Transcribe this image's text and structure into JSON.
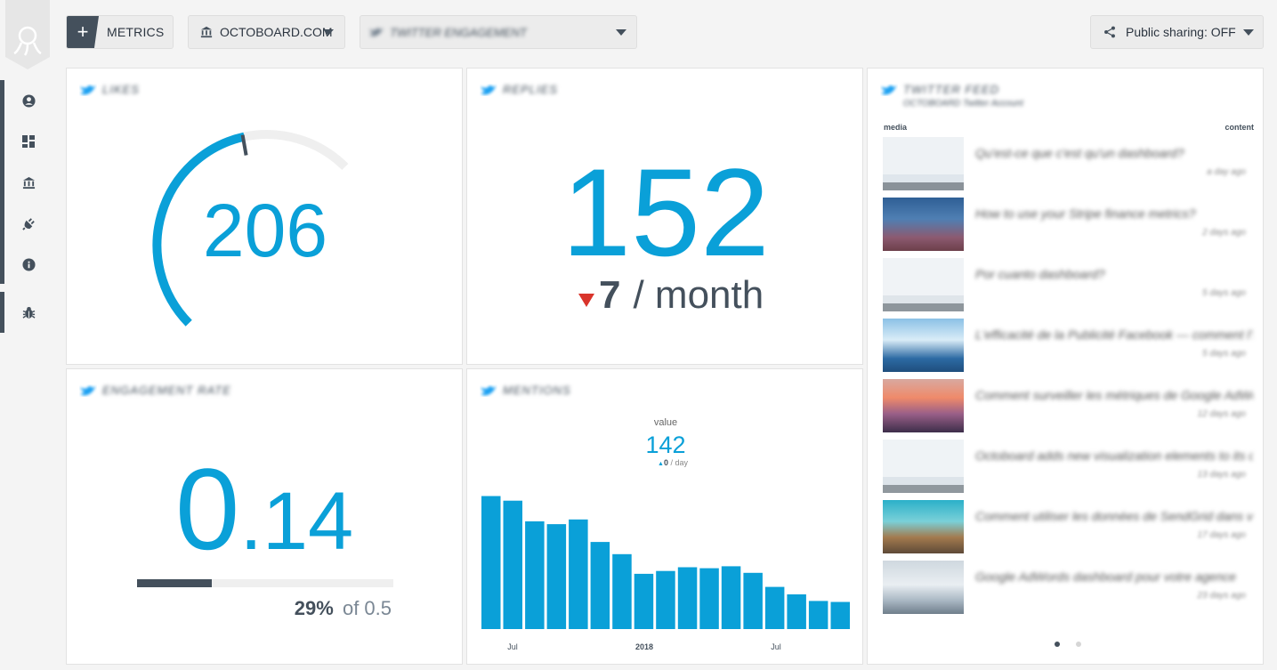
{
  "toolbar": {
    "metrics_label": "METRICS",
    "org_label": "OCTOBOARD.COM",
    "dashboard_label": "TWITTER ENGAGEMENT",
    "share_label": "Public sharing: OFF"
  },
  "sidebar": {
    "items": [
      {
        "name": "account",
        "icon": "user-circle-icon"
      },
      {
        "name": "dashboards",
        "icon": "dashboard-icon"
      },
      {
        "name": "organization",
        "icon": "bank-icon"
      },
      {
        "name": "integrations",
        "icon": "plug-icon"
      },
      {
        "name": "info",
        "icon": "info-icon"
      },
      {
        "name": "bug-report",
        "icon": "bug-icon"
      }
    ]
  },
  "widgets": {
    "likes": {
      "title": "LIKES",
      "value": "206",
      "gauge_fraction": 0.5
    },
    "replies": {
      "title": "REPLIES",
      "value": "152",
      "change": "7",
      "change_direction": "down",
      "period": "/ month"
    },
    "engagement": {
      "title": "ENGAGEMENT RATE",
      "int_part": "0",
      "dec_part": ".14",
      "percent": "29%",
      "of_label": "of 0.5",
      "progress_fraction": 0.29
    },
    "mentions": {
      "title": "MENTIONS",
      "value_label": "value",
      "value": "142",
      "delta": "0",
      "delta_unit": "/ day"
    },
    "feed": {
      "title": "TWITTER FEED",
      "subtitle": "OCTOBOARD Twitter Account",
      "col_media": "media",
      "col_content": "content",
      "items": [
        {
          "text": "Qu'est-ce que c'est qu'un dashboard?",
          "date": "a day ago"
        },
        {
          "text": "How to use your Stripe finance metrics?",
          "date": "2 days ago"
        },
        {
          "text": "Por cuanto dashboard?",
          "date": "5 days ago"
        },
        {
          "text": "L'efficacité de la Publicité Facebook — comment l'analyser",
          "date": "5 days ago"
        },
        {
          "text": "Comment surveiller les métriques de Google AdWords",
          "date": "12 days ago"
        },
        {
          "text": "Octoboard adds new visualization elements to its dashboards",
          "date": "13 days ago"
        },
        {
          "text": "Comment utiliser les données de SendGrid dans votre rapport",
          "date": "17 days ago"
        },
        {
          "text": "Google AdWords dashboard pour votre agence",
          "date": "23 days ago"
        }
      ],
      "pager": {
        "pages": 2,
        "current": 1
      }
    }
  },
  "chart_data": {
    "type": "bar",
    "x_tick_labels": [
      "Jul",
      "2018",
      "Jul"
    ],
    "values": [
      142,
      137,
      115,
      112,
      117,
      93,
      80,
      59,
      62,
      66,
      65,
      67,
      60,
      45,
      37,
      30,
      29
    ],
    "color": "#0aa0d8",
    "ylim": [
      0,
      200
    ]
  },
  "colors": {
    "accent": "#0aa0d8",
    "dark": "#44505c",
    "down": "#d9342b"
  }
}
